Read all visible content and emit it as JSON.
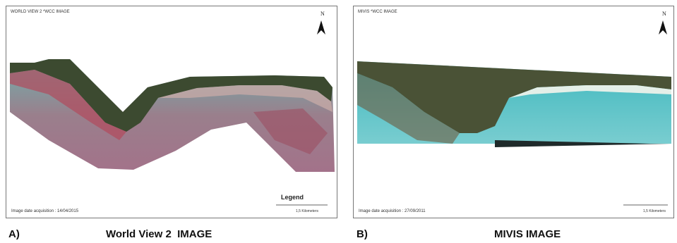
{
  "panels": [
    {
      "title": "WORLD VIEW 2 *WCC IMAGE",
      "north": "N",
      "legend": "Legend",
      "scale": "1,5 Kilometers",
      "date": "Image date acquisition : 14/04/2015",
      "label": "A)",
      "caption": "World View 2  IMAGE"
    },
    {
      "title": "MIVIS *WCC IMAGE",
      "north": "N",
      "scale": "1,5 Kilometers",
      "date": "Image date acquisition : 27/09/2011",
      "label": "B)",
      "caption": "MIVIS IMAGE"
    }
  ]
}
